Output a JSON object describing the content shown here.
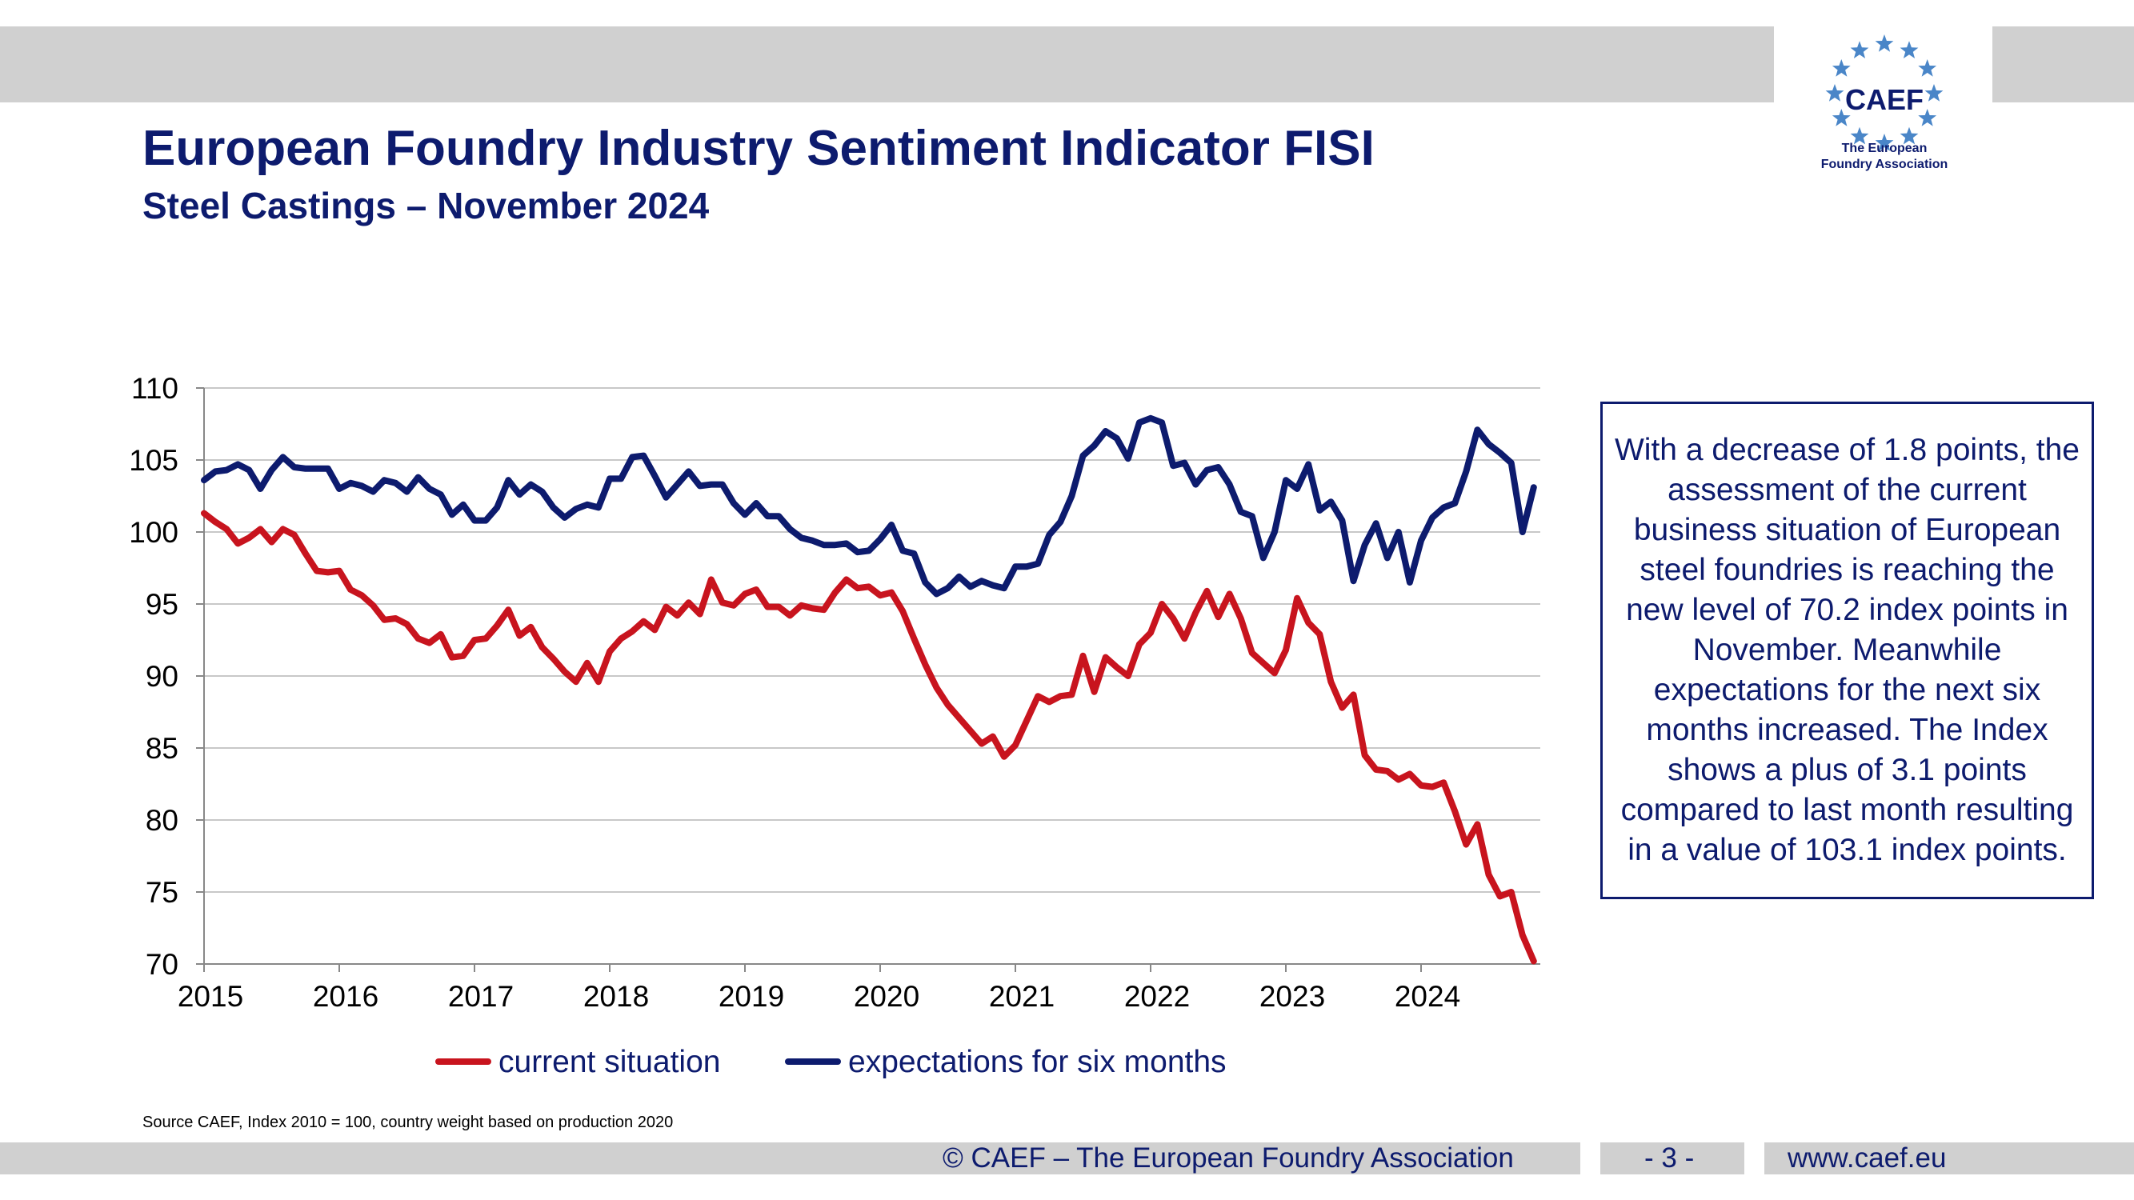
{
  "header": {
    "title": "European Foundry Industry Sentiment Indicator FISI",
    "subtitle": "Steel Castings – November 2024"
  },
  "logo": {
    "text": "CAEF",
    "caption_line1": "The European",
    "caption_line2": "Foundry Association",
    "star_color": "#4a86c8"
  },
  "infobox": {
    "text": "With a decrease of 1.8 points, the assessment of the current business situation of European steel foundries is reaching the new level of 70.2 index points in November. Meanwhile expectations for the next six months increased. The Index shows a plus of 3.1 points compared to last month resulting in a value of 103.1 index points."
  },
  "source": "Source CAEF, Index 2010 = 100, country weight based on production 2020",
  "footer": {
    "copyright": "© CAEF – The European Foundry Association",
    "page": "- 3 -",
    "url": "www.caef.eu"
  },
  "chart_data": {
    "type": "line",
    "title": "",
    "xlabel": "",
    "ylabel": "",
    "ylim": [
      70,
      110
    ],
    "yticks": [
      "70",
      "75",
      "80",
      "85",
      "90",
      "95",
      "100",
      "105",
      "110"
    ],
    "xticks": [
      "2015",
      "2016",
      "2017",
      "2018",
      "2019",
      "2020",
      "2021",
      "2022",
      "2023",
      "2024"
    ],
    "x_start": "2015-01",
    "x_end": "2024-11",
    "grid": true,
    "legend_position": "bottom",
    "series": [
      {
        "name": "current situation",
        "color": "#c8141e",
        "values": [
          101.3,
          100.7,
          100.2,
          99.2,
          99.6,
          100.2,
          99.3,
          100.2,
          99.8,
          98.5,
          97.3,
          97.2,
          97.3,
          96.0,
          95.6,
          94.9,
          93.9,
          94.0,
          93.6,
          92.6,
          92.3,
          92.9,
          91.3,
          91.4,
          92.5,
          92.6,
          93.5,
          94.6,
          92.8,
          93.4,
          92.0,
          91.2,
          90.3,
          89.6,
          90.9,
          89.6,
          91.7,
          92.6,
          93.1,
          93.8,
          93.2,
          94.8,
          94.2,
          95.1,
          94.3,
          96.7,
          95.1,
          94.9,
          95.7,
          96.0,
          94.8,
          94.8,
          94.2,
          94.9,
          94.7,
          94.6,
          95.8,
          96.7,
          96.1,
          96.2,
          95.6,
          95.8,
          94.5,
          92.6,
          90.8,
          89.2,
          88.0,
          87.1,
          86.2,
          85.3,
          85.8,
          84.4,
          85.2,
          86.9,
          88.6,
          88.2,
          88.6,
          88.7,
          91.4,
          88.9,
          91.3,
          90.6,
          90.0,
          92.2,
          93.0,
          95.0,
          94.0,
          92.6,
          94.4,
          95.9,
          94.1,
          95.7,
          94.0,
          91.6,
          90.9,
          90.2,
          91.8,
          95.4,
          93.7,
          92.9,
          89.6,
          87.8,
          88.7,
          84.5,
          83.5,
          83.4,
          82.8,
          83.2,
          82.4,
          82.3,
          82.6,
          80.6,
          78.3,
          79.7,
          76.2,
          74.7,
          75.0,
          72.0,
          70.2
        ]
      },
      {
        "name": "expectations for six months",
        "color": "#0d1b6e",
        "values": [
          103.6,
          104.2,
          104.3,
          104.7,
          104.3,
          103.0,
          104.3,
          105.2,
          104.5,
          104.4,
          104.4,
          104.4,
          103.0,
          103.4,
          103.2,
          102.8,
          103.6,
          103.4,
          102.8,
          103.8,
          103.0,
          102.6,
          101.2,
          101.9,
          100.8,
          100.8,
          101.7,
          103.6,
          102.6,
          103.3,
          102.8,
          101.7,
          101.0,
          101.6,
          101.9,
          101.7,
          103.7,
          103.7,
          105.2,
          105.3,
          103.9,
          102.4,
          103.3,
          104.2,
          103.2,
          103.3,
          103.3,
          102.0,
          101.2,
          102.0,
          101.1,
          101.1,
          100.2,
          99.6,
          99.4,
          99.1,
          99.1,
          99.2,
          98.6,
          98.7,
          99.5,
          100.5,
          98.7,
          98.5,
          96.5,
          95.7,
          96.1,
          96.9,
          96.2,
          96.6,
          96.3,
          96.1,
          97.6,
          97.6,
          97.8,
          99.8,
          100.7,
          102.5,
          105.3,
          106.0,
          107.0,
          106.5,
          105.1,
          107.6,
          107.9,
          107.6,
          104.6,
          104.8,
          103.3,
          104.3,
          104.5,
          103.3,
          101.4,
          101.1,
          98.2,
          100.0,
          103.6,
          103.0,
          104.7,
          101.5,
          102.1,
          100.8,
          96.6,
          99.1,
          100.6,
          98.2,
          100.0,
          96.5,
          99.4,
          101.0,
          101.7,
          102.0,
          104.2,
          107.1,
          106.1,
          105.5,
          104.8,
          100.0,
          103.1
        ]
      }
    ]
  }
}
